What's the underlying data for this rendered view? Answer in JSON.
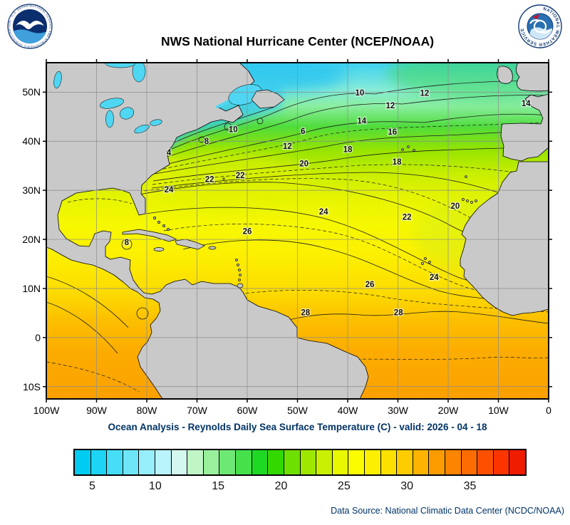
{
  "header": {
    "title": "NWS National Hurricane Center (NCEP/NOAA)"
  },
  "logos": {
    "noaa_ring_text": "NATIONAL OCEANIC AND ATMOSPHERIC ADMINISTRATION · U.S. DEPARTMENT OF COMMERCE",
    "nws_ring_text": "NATIONAL WEATHER SERVICE"
  },
  "map": {
    "extent": {
      "lon_min": -100,
      "lon_max": 0,
      "lat_min": -12.5,
      "lat_max": 56
    },
    "lat_ticks": [
      {
        "label": "50N",
        "lat": 50
      },
      {
        "label": "40N",
        "lat": 40
      },
      {
        "label": "30N",
        "lat": 30
      },
      {
        "label": "20N",
        "lat": 20
      },
      {
        "label": "10N",
        "lat": 10
      },
      {
        "label": "0",
        "lat": 0
      },
      {
        "label": "10S",
        "lat": -10
      }
    ],
    "lon_ticks": [
      {
        "label": "100W",
        "lon": -100
      },
      {
        "label": "90W",
        "lon": -90
      },
      {
        "label": "80W",
        "lon": -80
      },
      {
        "label": "70W",
        "lon": -70
      },
      {
        "label": "60W",
        "lon": -60
      },
      {
        "label": "50W",
        "lon": -50
      },
      {
        "label": "40W",
        "lon": -40
      },
      {
        "label": "30W",
        "lon": -30
      },
      {
        "label": "20W",
        "lon": -20
      },
      {
        "label": "10W",
        "lon": -10
      },
      {
        "label": "0",
        "lon": 0
      }
    ]
  },
  "chart_data": {
    "type": "heatmap",
    "title": "NWS National Hurricane Center (NCEP/NOAA)",
    "subtitle": "Ocean Analysis - Reynolds Daily Sea Surface Temperature (C) - valid: 2026 - 04 - 18",
    "units": "degrees C",
    "isotherm_labels": [
      {
        "value": "4",
        "lon": -75.6,
        "lat": 37.7
      },
      {
        "value": "8",
        "lon": -68.1,
        "lat": 40.0
      },
      {
        "value": "10",
        "lon": -62.8,
        "lat": 42.4
      },
      {
        "value": "12",
        "lon": -52.0,
        "lat": 39.0
      },
      {
        "value": "6",
        "lon": -48.9,
        "lat": 42.1
      },
      {
        "value": "10",
        "lon": -37.6,
        "lat": 49.9
      },
      {
        "value": "12",
        "lon": -31.5,
        "lat": 47.3
      },
      {
        "value": "12",
        "lon": -24.7,
        "lat": 49.8
      },
      {
        "value": "14",
        "lon": -37.2,
        "lat": 44.2
      },
      {
        "value": "14",
        "lon": -4.5,
        "lat": 47.7
      },
      {
        "value": "16",
        "lon": -31.1,
        "lat": 41.9
      },
      {
        "value": "18",
        "lon": -40.0,
        "lat": 38.4
      },
      {
        "value": "18",
        "lon": -30.2,
        "lat": 35.8
      },
      {
        "value": "20",
        "lon": -48.7,
        "lat": 35.5
      },
      {
        "value": "20",
        "lon": -18.6,
        "lat": 26.8
      },
      {
        "value": "22",
        "lon": -67.5,
        "lat": 32.3
      },
      {
        "value": "22",
        "lon": -61.4,
        "lat": 33.1
      },
      {
        "value": "22",
        "lon": -28.2,
        "lat": 24.6
      },
      {
        "value": "24",
        "lon": -75.6,
        "lat": 30.2
      },
      {
        "value": "24",
        "lon": -44.8,
        "lat": 25.7
      },
      {
        "value": "24",
        "lon": -22.8,
        "lat": 12.3
      },
      {
        "value": "26",
        "lon": -60.0,
        "lat": 21.7
      },
      {
        "value": "26",
        "lon": -35.6,
        "lat": 10.9
      },
      {
        "value": "28",
        "lon": -48.4,
        "lat": 5.1
      },
      {
        "value": "28",
        "lon": -29.9,
        "lat": 5.1
      },
      {
        "value": "8",
        "lon": -84.0,
        "lat": 19.4
      }
    ],
    "colorbar": {
      "min": 3.5,
      "max": 39.5,
      "tick_values": [
        5,
        10,
        15,
        20,
        25,
        30,
        35
      ],
      "colors": [
        "#00ccf2",
        "#1ed4f4",
        "#46def6",
        "#6ee6f8",
        "#96eefa",
        "#baf4fb",
        "#d4f8f0",
        "#c0f6c6",
        "#98f09c",
        "#6ee874",
        "#46e04c",
        "#1ed824",
        "#32d800",
        "#6ee000",
        "#9ee800",
        "#c8f000",
        "#e8f800",
        "#fcfc00",
        "#fcf000",
        "#fce000",
        "#fccc00",
        "#fcb400",
        "#fc9c00",
        "#fc8400",
        "#fc6c00",
        "#fc5000",
        "#fc3400",
        "#ee1c00"
      ]
    }
  },
  "caption": {
    "text": "Ocean Analysis - Reynolds Daily Sea Surface Temperature (C) - valid: 2026 - 04 - 18"
  },
  "footer": {
    "source": "Data Source: National Climatic Data Center (NCDC/NOAA)"
  }
}
